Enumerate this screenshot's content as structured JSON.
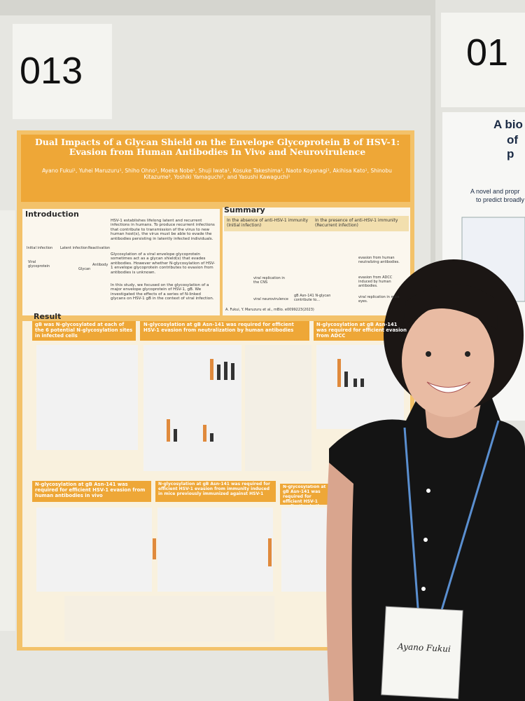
{
  "board": {
    "number": "013",
    "next_number": "01"
  },
  "poster": {
    "title": "Dual Impacts of a Glycan Shield on the Envelope Glycoprotein B of HSV-1: Evasion from Human Antibodies In Vivo and Neurovirulence",
    "authors": "Ayano Fukui¹, Yuhei Maruzuru¹, Shiho Ohno¹, Moeka Nobe¹, Shuji Iwata¹, Kosuke Takeshima¹, Naoto Koyanagi¹, Akihisa Kato¹, Shinobu Kitazume³, Yoshiki Yamaguchi², and Yasushi Kawaguchi¹",
    "introduction": {
      "heading": "Introduction",
      "diagram_labels": [
        "Initial infection",
        "Latent infection",
        "Reactivation",
        "Viral glycoprotein",
        "Glycan",
        "Antibody"
      ],
      "paragraphs": [
        "HSV-1 establishes lifelong latent and recurrent infections in humans. To produce recurrent infections that contribute to transmission of the virus to new human host(s), the virus must be able to evade the antibodies persisting in latently infected individuals.",
        "Glycosylation of a viral envelope glycoprotein sometimes act as a glycan shield(s) that evades antibodies. However whether N-glycosylation of HSV-1 envelope glycoprotein contributes to evasion from antibodies is unknown.",
        "In this study, we focused on the glycosylation of a major envelope glycoprotein of HSV-1, gB. We investigated the effects of a series of N-linked glycans on HSV-1 gB in the context of viral infection."
      ]
    },
    "summary": {
      "heading": "Summary",
      "left_title": "In the absence of anti-HSV-1 immunity (Initial infection)",
      "right_title": "In the presence of anti-HSV-1 immunity (Recurrent infection)",
      "left_items": [
        "viral replication in the CNS",
        "viral neurovirulence"
      ],
      "center": "gB Asn-141 N-glycan contribute to...",
      "right_items": [
        "evasion from human neutralizing antibodies.",
        "evasion from ADCC induced by human antibodies.",
        "viral replication in mice eyes."
      ],
      "citation": "A. Fukui, Y. Maruzuru et al., mBio. e0099223(2023)"
    },
    "result": {
      "heading": "Result",
      "panels": [
        "gB was N-glycosylated at each of the 6 potential N-glycosylation sites in infected cells",
        "N-glycosylation at gB Asn-141 was required for efficient HSV-1 evasion from neutralization by human antibodies",
        "N-glycosylation at gB Asn-141 was required for efficient evasion from ADCC",
        "N-glycosylation at gB Asn-141 was required for efficient HSV-1 evasion from human antibodies in vivo",
        "N-glycosylation at gB Asn-141 was required for efficient HSV-1 evasion from immunity induced in mice previously immunized against HSV-1",
        "N-glycosylation at gB Asn-141 was required for efficient HSV-1 replication in the"
      ]
    }
  },
  "side_poster": {
    "title_lines": [
      "A bio",
      "of p"
    ],
    "text_lines": [
      "A novel and propr",
      "to predict broadly"
    ]
  },
  "name_tag": {
    "name": "Ayano Fukui"
  }
}
